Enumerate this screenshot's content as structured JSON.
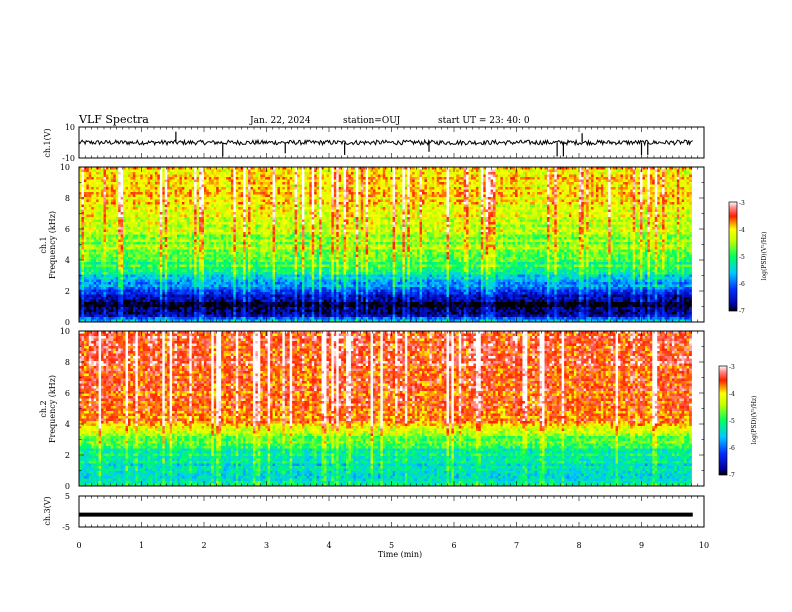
{
  "header": {
    "title": "VLF Spectra",
    "date": "Jan. 22, 2024",
    "station": "station=OUJ",
    "start": "start UT =  23: 40: 0"
  },
  "chart_data": [
    {
      "type": "line",
      "name": "ch1-waveform",
      "ylabel": "ch.1(V)",
      "ylim": [
        -10,
        10
      ],
      "yticks": [
        "10",
        "-10"
      ],
      "xlim": [
        0,
        10
      ],
      "baseline": 0,
      "noise_band": 1.5,
      "spikes": [
        {
          "x": 1.55,
          "y": 7
        },
        {
          "x": 2.3,
          "y": -9
        },
        {
          "x": 3.3,
          "y": -7
        },
        {
          "x": 4.25,
          "y": -8
        },
        {
          "x": 5.6,
          "y": -6
        },
        {
          "x": 7.65,
          "y": -9
        },
        {
          "x": 7.75,
          "y": -9
        },
        {
          "x": 8.05,
          "y": 6
        },
        {
          "x": 9.0,
          "y": -8
        },
        {
          "x": 9.1,
          "y": -8
        }
      ]
    },
    {
      "type": "heatmap",
      "name": "ch1-spectrogram",
      "ylabel1": "ch.1",
      "ylabel2": "Frequency (kHz)",
      "ylim": [
        0,
        10
      ],
      "xlim": [
        0,
        9.8
      ],
      "yticks": [
        "0",
        "2",
        "4",
        "6",
        "8",
        "10"
      ],
      "colorbar": {
        "label": "log(PSD)(V²/Hz)",
        "range": [
          -7,
          -3
        ],
        "ticks": [
          "-3",
          "-4",
          "-5",
          "-6",
          "-7"
        ]
      },
      "profile": [
        {
          "f": 0.0,
          "v": -5.3
        },
        {
          "f": 0.3,
          "v": -6.2
        },
        {
          "f": 0.6,
          "v": -6.9
        },
        {
          "f": 1.0,
          "v": -7.0
        },
        {
          "f": 1.5,
          "v": -6.8
        },
        {
          "f": 2.0,
          "v": -6.2
        },
        {
          "f": 2.5,
          "v": -5.7
        },
        {
          "f": 3.0,
          "v": -5.4
        },
        {
          "f": 3.5,
          "v": -5.0
        },
        {
          "f": 4.5,
          "v": -4.6
        },
        {
          "f": 6.0,
          "v": -4.4
        },
        {
          "f": 8.0,
          "v": -4.0
        },
        {
          "f": 10.0,
          "v": -3.9
        }
      ]
    },
    {
      "type": "heatmap",
      "name": "ch2-spectrogram",
      "ylabel1": "ch.2",
      "ylabel2": "Frequency (kHz)",
      "ylim": [
        0,
        10
      ],
      "xlim": [
        0,
        9.8
      ],
      "yticks": [
        "0",
        "2",
        "4",
        "6",
        "8",
        "10"
      ],
      "colorbar": {
        "label": "log(PSD)(V²/Hz)",
        "range": [
          -7,
          -3
        ],
        "ticks": [
          "-3",
          "-4",
          "-5",
          "-6",
          "-7"
        ]
      },
      "profile": [
        {
          "f": 0.0,
          "v": -5.0
        },
        {
          "f": 0.5,
          "v": -5.3
        },
        {
          "f": 1.0,
          "v": -5.5
        },
        {
          "f": 2.0,
          "v": -5.2
        },
        {
          "f": 3.0,
          "v": -4.8
        },
        {
          "f": 3.6,
          "v": -4.2
        },
        {
          "f": 4.0,
          "v": -3.8
        },
        {
          "f": 5.0,
          "v": -3.6
        },
        {
          "f": 7.0,
          "v": -3.5
        },
        {
          "f": 10.0,
          "v": -3.5
        }
      ]
    },
    {
      "type": "line",
      "name": "ch3-waveform",
      "ylabel": "ch.3(V)",
      "ylim": [
        -5,
        5
      ],
      "yticks": [
        "5",
        "-5"
      ],
      "xlim": [
        0,
        10
      ],
      "level": -1
    }
  ],
  "xaxis": {
    "label": "Time (min)",
    "ticks": [
      "0",
      "1",
      "2",
      "3",
      "4",
      "5",
      "6",
      "7",
      "8",
      "9",
      "10"
    ]
  }
}
